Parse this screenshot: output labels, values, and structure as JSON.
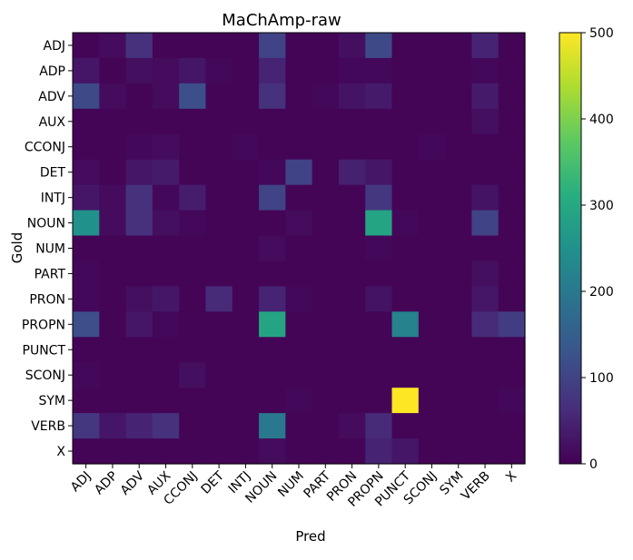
{
  "chart_data": {
    "type": "heatmap",
    "title": "MaChAmp-raw",
    "xlabel": "Pred",
    "ylabel": "Gold",
    "x_categories": [
      "ADJ",
      "ADP",
      "ADV",
      "AUX",
      "CCONJ",
      "DET",
      "INTJ",
      "NOUN",
      "NUM",
      "PART",
      "PRON",
      "PROPN",
      "PUNCT",
      "SCONJ",
      "SYM",
      "VERB",
      "X"
    ],
    "y_categories": [
      "ADJ",
      "ADP",
      "ADV",
      "AUX",
      "CCONJ",
      "DET",
      "INTJ",
      "NOUN",
      "NUM",
      "PART",
      "PRON",
      "PROPN",
      "PUNCT",
      "SCONJ",
      "SYM",
      "VERB",
      "X"
    ],
    "colorbar": {
      "min": 0,
      "max": 500,
      "ticks": [
        0,
        100,
        200,
        300,
        400,
        500
      ]
    },
    "colormap": "viridis",
    "values": [
      [
        5,
        15,
        70,
        5,
        5,
        5,
        5,
        100,
        5,
        5,
        20,
        110,
        5,
        5,
        5,
        50,
        5
      ],
      [
        30,
        5,
        20,
        15,
        30,
        10,
        5,
        50,
        5,
        5,
        10,
        10,
        5,
        5,
        5,
        10,
        5
      ],
      [
        110,
        15,
        5,
        15,
        120,
        5,
        5,
        70,
        5,
        10,
        25,
        35,
        5,
        5,
        5,
        35,
        5
      ],
      [
        5,
        5,
        5,
        5,
        5,
        5,
        5,
        5,
        5,
        5,
        5,
        5,
        5,
        5,
        5,
        20,
        5
      ],
      [
        5,
        5,
        10,
        15,
        5,
        5,
        10,
        5,
        5,
        5,
        5,
        5,
        5,
        10,
        5,
        5,
        5
      ],
      [
        15,
        5,
        30,
        35,
        5,
        5,
        5,
        10,
        100,
        5,
        45,
        30,
        5,
        5,
        5,
        5,
        5
      ],
      [
        30,
        15,
        70,
        10,
        40,
        5,
        5,
        100,
        5,
        5,
        5,
        80,
        5,
        5,
        5,
        25,
        5
      ],
      [
        250,
        15,
        70,
        20,
        10,
        5,
        5,
        5,
        15,
        5,
        5,
        290,
        10,
        5,
        5,
        100,
        5
      ],
      [
        5,
        5,
        5,
        5,
        5,
        5,
        5,
        15,
        5,
        5,
        5,
        10,
        5,
        5,
        5,
        5,
        5
      ],
      [
        10,
        5,
        5,
        5,
        5,
        5,
        5,
        5,
        5,
        5,
        5,
        5,
        5,
        5,
        5,
        20,
        5
      ],
      [
        10,
        5,
        20,
        30,
        5,
        60,
        5,
        50,
        10,
        5,
        5,
        25,
        5,
        5,
        5,
        30,
        5
      ],
      [
        120,
        5,
        30,
        10,
        5,
        5,
        5,
        290,
        5,
        5,
        5,
        5,
        220,
        5,
        5,
        60,
        90
      ],
      [
        5,
        5,
        5,
        5,
        5,
        5,
        5,
        5,
        5,
        5,
        5,
        5,
        5,
        5,
        5,
        5,
        5
      ],
      [
        10,
        5,
        5,
        5,
        20,
        5,
        5,
        5,
        5,
        5,
        5,
        5,
        5,
        5,
        5,
        5,
        5
      ],
      [
        5,
        5,
        5,
        5,
        5,
        5,
        5,
        5,
        10,
        5,
        5,
        5,
        500,
        5,
        5,
        5,
        10
      ],
      [
        80,
        30,
        50,
        70,
        5,
        5,
        5,
        200,
        5,
        5,
        15,
        60,
        5,
        5,
        5,
        5,
        5
      ],
      [
        5,
        5,
        5,
        5,
        5,
        5,
        5,
        15,
        5,
        5,
        5,
        50,
        30,
        5,
        5,
        5,
        5
      ]
    ]
  }
}
